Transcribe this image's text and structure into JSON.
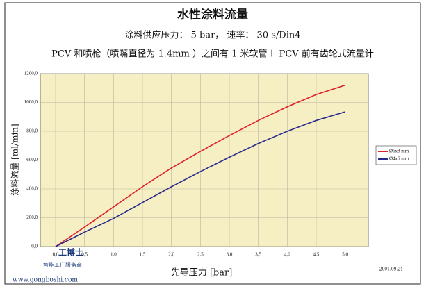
{
  "chart_data": {
    "type": "line",
    "title": "水性涂料流量",
    "subtitle": "涂料供应压力： 5 bar， 速率： 30 s/Din4",
    "note": "PCV 和喷枪（喷嘴直径为 1.4mm ）之间有 1 米软管＋ PCV 前有齿轮式流量计",
    "x_label": "先导压力 [bar]",
    "y_label": "涂料流量 [ml/min]",
    "date": "2001.09.21",
    "watermark": [
      "工博士",
      "智能工厂服务商",
      "www.gongboshi.com"
    ],
    "x": [
      0,
      0.5,
      1,
      1.5,
      2,
      2.5,
      3,
      3.5,
      4,
      4.5,
      5
    ],
    "series": [
      {
        "name": "Ø6x8 mm",
        "color": "#e0202a",
        "values": [
          0,
          135,
          275,
          415,
          545,
          660,
          770,
          875,
          970,
          1055,
          1120
        ]
      },
      {
        "name": "Ø4x6 mm",
        "color": "#2a2a8c",
        "values": [
          0,
          100,
          195,
          305,
          415,
          520,
          620,
          715,
          800,
          875,
          935
        ]
      }
    ],
    "xlim": [
      0,
      5.4
    ],
    "ylim": [
      0,
      1200
    ],
    "xticks": [
      {
        "value": 0,
        "label": "0,0"
      },
      {
        "value": 0.5,
        "label": "0,5"
      },
      {
        "value": 1,
        "label": "1,0"
      },
      {
        "value": 1.5,
        "label": "1,5"
      },
      {
        "value": 2,
        "label": "2,0"
      },
      {
        "value": 2.5,
        "label": "2,5"
      },
      {
        "value": 3,
        "label": "3,0"
      },
      {
        "value": 3.5,
        "label": "3,5"
      },
      {
        "value": 4,
        "label": "4,0"
      },
      {
        "value": 4.5,
        "label": "4,5"
      },
      {
        "value": 5,
        "label": "5,0"
      }
    ],
    "yticks": [
      {
        "value": 0,
        "label": "0,0"
      },
      {
        "value": 200,
        "label": "200,0"
      },
      {
        "value": 400,
        "label": "400,0"
      },
      {
        "value": 600,
        "label": "600,0"
      },
      {
        "value": 800,
        "label": "800,0"
      },
      {
        "value": 1000,
        "label": "1000,0"
      },
      {
        "value": 1200,
        "label": "1200,0"
      }
    ],
    "grid": true,
    "legend": "right"
  }
}
